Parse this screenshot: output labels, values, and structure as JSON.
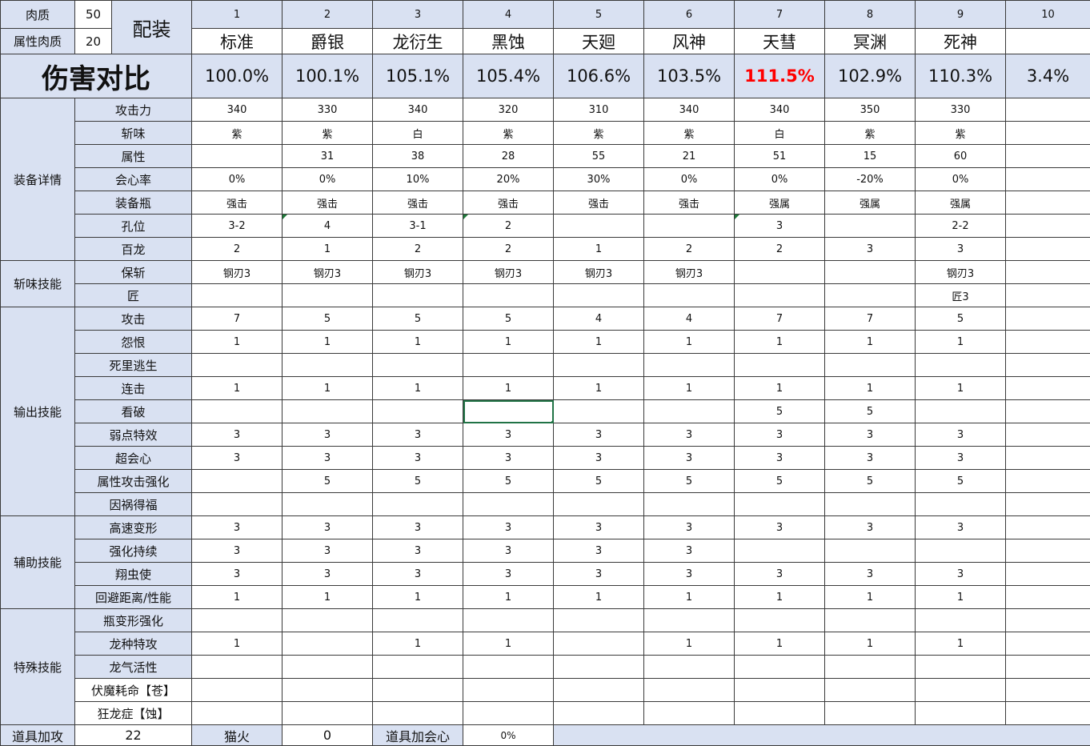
{
  "top": {
    "meat_label": "肉质",
    "meat_value": "50",
    "elem_meat_label": "属性肉质",
    "elem_meat_value": "20",
    "loadout_label": "配装",
    "damage_compare_label": "伤害对比"
  },
  "columns": [
    {
      "index": "1",
      "name": "标准",
      "damage": "100.0%"
    },
    {
      "index": "2",
      "name": "爵银",
      "damage": "100.1%"
    },
    {
      "index": "3",
      "name": "龙衍生",
      "damage": "105.1%"
    },
    {
      "index": "4",
      "name": "黑蚀",
      "damage": "105.4%"
    },
    {
      "index": "5",
      "name": "天廻",
      "damage": "106.6%"
    },
    {
      "index": "6",
      "name": "风神",
      "damage": "103.5%"
    },
    {
      "index": "7",
      "name": "天彗",
      "damage": "111.5%",
      "highlight": true
    },
    {
      "index": "8",
      "name": "冥渊",
      "damage": "102.9%"
    },
    {
      "index": "9",
      "name": "死神",
      "damage": "110.3%"
    },
    {
      "index": "10",
      "name": "",
      "damage": "3.4%"
    }
  ],
  "colors": {
    "header_bg": "#d9e1f2",
    "highlight": "#ff0000",
    "selection": "#217346"
  },
  "groups": [
    {
      "label": "装备详情",
      "rows": [
        {
          "label": "攻击力",
          "values": [
            "340",
            "330",
            "340",
            "320",
            "310",
            "340",
            "340",
            "350",
            "330",
            ""
          ]
        },
        {
          "label": "斩味",
          "values": [
            "紫",
            "紫",
            "白",
            "紫",
            "紫",
            "紫",
            "白",
            "紫",
            "紫",
            ""
          ]
        },
        {
          "label": "属性",
          "values": [
            "",
            "31",
            "38",
            "28",
            "55",
            "21",
            "51",
            "15",
            "60",
            ""
          ]
        },
        {
          "label": "会心率",
          "values": [
            "0%",
            "0%",
            "10%",
            "20%",
            "30%",
            "0%",
            "0%",
            "-20%",
            "0%",
            ""
          ]
        },
        {
          "label": "装备瓶",
          "values": [
            "强击",
            "强击",
            "强击",
            "强击",
            "强击",
            "强击",
            "强属",
            "强属",
            "强属",
            ""
          ]
        },
        {
          "label": "孔位",
          "values": [
            "3-2",
            "4",
            "3-1",
            "2",
            "",
            "",
            "3",
            "",
            "2-2",
            ""
          ],
          "comment_marks": [
            2,
            4,
            7
          ]
        },
        {
          "label": "百龙",
          "values": [
            "2",
            "1",
            "2",
            "2",
            "1",
            "2",
            "2",
            "3",
            "3",
            ""
          ]
        }
      ]
    },
    {
      "label": "斩味技能",
      "rows": [
        {
          "label": "保斩",
          "values": [
            "钢刃3",
            "钢刃3",
            "钢刃3",
            "钢刃3",
            "钢刃3",
            "钢刃3",
            "",
            "",
            "钢刃3",
            ""
          ]
        },
        {
          "label": "匠",
          "values": [
            "",
            "",
            "",
            "",
            "",
            "",
            "",
            "",
            "匠3",
            ""
          ]
        }
      ]
    },
    {
      "label": "输出技能",
      "rows": [
        {
          "label": "攻击",
          "values": [
            "7",
            "5",
            "5",
            "5",
            "4",
            "4",
            "7",
            "7",
            "5",
            ""
          ]
        },
        {
          "label": "怨恨",
          "values": [
            "1",
            "1",
            "1",
            "1",
            "1",
            "1",
            "1",
            "1",
            "1",
            ""
          ]
        },
        {
          "label": "死里逃生",
          "values": [
            "",
            "",
            "",
            "",
            "",
            "",
            "",
            "",
            "",
            ""
          ]
        },
        {
          "label": "连击",
          "values": [
            "1",
            "1",
            "1",
            "1",
            "1",
            "1",
            "1",
            "1",
            "1",
            ""
          ]
        },
        {
          "label": "看破",
          "values": [
            "",
            "",
            "",
            "",
            "",
            "",
            "5",
            "5",
            "",
            ""
          ],
          "selected_col": 4
        },
        {
          "label": "弱点特效",
          "values": [
            "3",
            "3",
            "3",
            "3",
            "3",
            "3",
            "3",
            "3",
            "3",
            ""
          ]
        },
        {
          "label": "超会心",
          "values": [
            "3",
            "3",
            "3",
            "3",
            "3",
            "3",
            "3",
            "3",
            "3",
            ""
          ]
        },
        {
          "label": "属性攻击强化",
          "values": [
            "",
            "5",
            "5",
            "5",
            "5",
            "5",
            "5",
            "5",
            "5",
            ""
          ]
        },
        {
          "label": "因祸得福",
          "values": [
            "",
            "",
            "",
            "",
            "",
            "",
            "",
            "",
            "",
            ""
          ]
        }
      ]
    },
    {
      "label": "辅助技能",
      "rows": [
        {
          "label": "高速变形",
          "values": [
            "3",
            "3",
            "3",
            "3",
            "3",
            "3",
            "3",
            "3",
            "3",
            ""
          ]
        },
        {
          "label": "强化持续",
          "values": [
            "3",
            "3",
            "3",
            "3",
            "3",
            "3",
            "",
            "",
            "",
            ""
          ]
        },
        {
          "label": "翔虫使",
          "values": [
            "3",
            "3",
            "3",
            "3",
            "3",
            "3",
            "3",
            "3",
            "3",
            ""
          ]
        },
        {
          "label": "回避距离/性能",
          "values": [
            "1",
            "1",
            "1",
            "1",
            "1",
            "1",
            "1",
            "1",
            "1",
            ""
          ]
        }
      ]
    },
    {
      "label": "特殊技能",
      "rows": [
        {
          "label": "瓶变形强化",
          "values": [
            "",
            "",
            "",
            "",
            "",
            "",
            "",
            "",
            "",
            ""
          ]
        },
        {
          "label": "龙种特攻",
          "values": [
            "1",
            "",
            "1",
            "1",
            "",
            "1",
            "1",
            "1",
            "1",
            ""
          ]
        },
        {
          "label": "龙气活性",
          "values": [
            "",
            "",
            "",
            "",
            "",
            "",
            "",
            "",
            "",
            ""
          ]
        },
        {
          "label": "伏魔耗命【苍】",
          "values": [
            "",
            "",
            "",
            "",
            "",
            "",
            "",
            "",
            "",
            ""
          ],
          "white_label": true
        },
        {
          "label": "狂龙症【蚀】",
          "values": [
            "",
            "",
            "",
            "",
            "",
            "",
            "",
            "",
            "",
            ""
          ],
          "white_label": true
        }
      ]
    }
  ],
  "bottom": {
    "item_attack_label": "道具加攻",
    "item_attack_value": "22",
    "cat_fire_label": "猫火",
    "cat_fire_value": "0",
    "item_crit_label": "道具加会心",
    "item_crit_value": "0%"
  }
}
